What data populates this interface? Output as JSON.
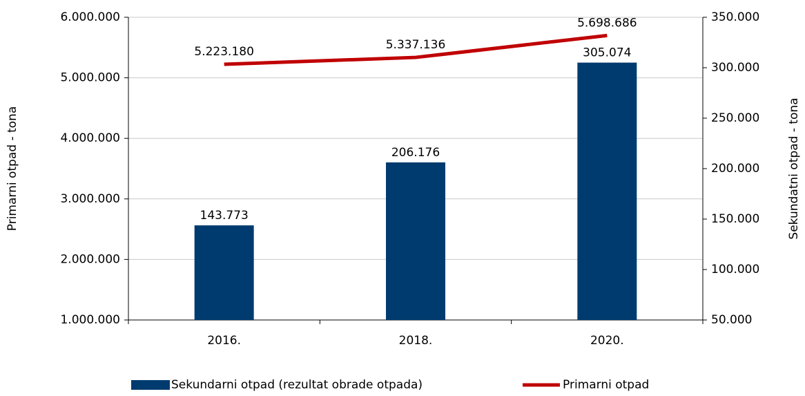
{
  "chart_data": {
    "type": "bar",
    "categories": [
      "2016.",
      "2018.",
      "2020."
    ],
    "y_label": "Primarni otpad - tona",
    "y2_label": "Sekundatni otpad - tona",
    "series": [
      {
        "name": "Sekundarni otpad (rezultat obrade otpada)",
        "type": "bar",
        "axis": "y2",
        "color": "#003b6f",
        "values": [
          143773,
          206176,
          305074
        ],
        "value_labels": [
          "143.773",
          "206.176",
          "305.074"
        ]
      },
      {
        "name": "Primarni otpad",
        "type": "line",
        "axis": "y",
        "color": "#c00000",
        "values": [
          5223180,
          5337136,
          5698686
        ],
        "value_labels": [
          "5.223.180",
          "5.337.136",
          "5.698.686"
        ]
      }
    ],
    "ylim": [
      1000000,
      6000000
    ],
    "yticks": [
      {
        "value": 1000000,
        "label": "1.000.000"
      },
      {
        "value": 2000000,
        "label": "2.000.000"
      },
      {
        "value": 3000000,
        "label": "3.000.000"
      },
      {
        "value": 4000000,
        "label": "4.000.000"
      },
      {
        "value": 5000000,
        "label": "5.000.000"
      },
      {
        "value": 6000000,
        "label": "6.000.000"
      }
    ],
    "y2lim": [
      50000,
      350000
    ],
    "y2ticks": [
      {
        "value": 50000,
        "label": "50.000"
      },
      {
        "value": 100000,
        "label": "100.000"
      },
      {
        "value": 150000,
        "label": "150.000"
      },
      {
        "value": 200000,
        "label": "200.000"
      },
      {
        "value": 250000,
        "label": "250.000"
      },
      {
        "value": 300000,
        "label": "300.000"
      },
      {
        "value": 350000,
        "label": "350.000"
      }
    ],
    "grid": true,
    "legend": "bottom"
  }
}
